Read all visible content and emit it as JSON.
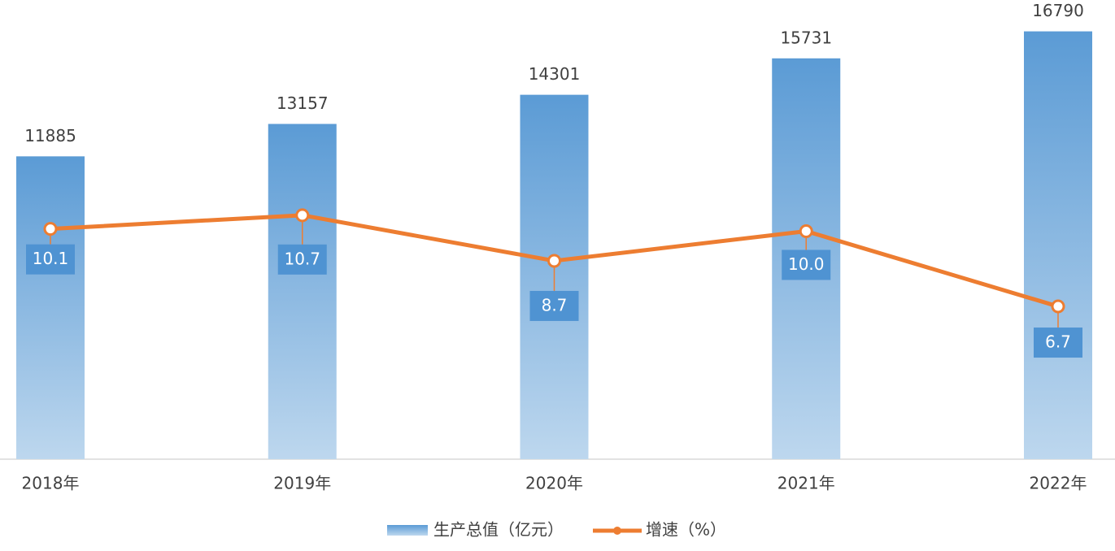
{
  "chart_data": {
    "type": "bar-line",
    "categories": [
      "2018年",
      "2019年",
      "2020年",
      "2021年",
      "2022年"
    ],
    "series": [
      {
        "name": "生产总值（亿元）",
        "type": "bar",
        "color": "#5b9bd5",
        "values": [
          11885,
          13157,
          14301,
          15731,
          16790
        ]
      },
      {
        "name": "增速（%）",
        "type": "line",
        "axis": "y2",
        "color": "#ed7d31",
        "values": [
          10.1,
          10.7,
          8.7,
          10.0,
          6.7
        ],
        "value_labels": [
          "10.1",
          "10.7",
          "8.7",
          "10.0",
          "6.7"
        ]
      }
    ],
    "ylim": [
      0,
      17000
    ],
    "y2lim": [
      0,
      19
    ],
    "grid": false,
    "legend": "bottom"
  }
}
